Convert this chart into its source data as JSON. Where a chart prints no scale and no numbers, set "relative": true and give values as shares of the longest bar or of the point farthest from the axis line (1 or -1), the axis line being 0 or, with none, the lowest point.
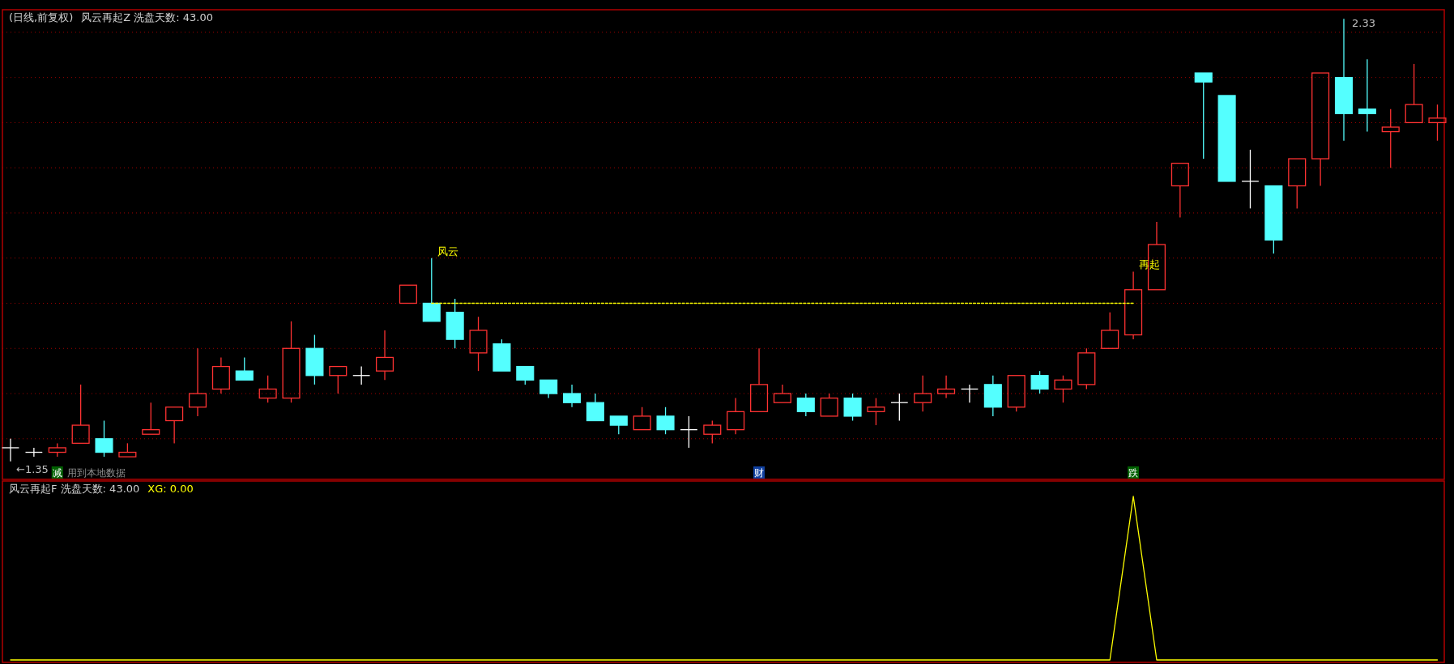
{
  "chart_data": [
    {
      "type": "candlestick",
      "title": "(日线,前复权)",
      "subtitle": "风云再起Z 洗盘天数: 43.00",
      "categories": [
        null,
        null,
        null,
        null,
        null,
        null,
        null,
        null,
        null,
        null,
        null,
        null,
        null,
        null,
        null,
        null,
        null,
        null,
        null,
        null,
        null,
        null,
        null,
        null,
        null,
        null,
        null,
        null,
        null,
        null,
        null,
        null,
        null,
        null,
        null,
        null,
        null,
        null,
        null,
        null,
        null,
        null,
        null,
        null,
        null,
        null,
        null,
        null,
        null,
        null,
        null,
        null,
        null,
        null,
        null,
        null,
        null,
        null,
        null,
        null,
        null,
        null
      ],
      "ylim": [
        1.31,
        2.35
      ],
      "yticks": [
        {
          "value": 1.4,
          "label": null
        },
        {
          "value": 1.5,
          "label": null
        },
        {
          "value": 1.6,
          "label": null
        },
        {
          "value": 1.7,
          "label": null
        },
        {
          "value": 1.8,
          "label": null
        },
        {
          "value": 1.9,
          "label": null
        },
        {
          "value": 2.0,
          "label": null
        },
        {
          "value": 2.1,
          "label": null
        },
        {
          "value": 2.2,
          "label": null
        },
        {
          "value": 2.3,
          "label": null
        }
      ],
      "grid": "y",
      "ohlc": [
        [
          1.38,
          1.4,
          1.35,
          1.38
        ],
        [
          1.37,
          1.38,
          1.36,
          1.37
        ],
        [
          1.37,
          1.39,
          1.36,
          1.38
        ],
        [
          1.39,
          1.52,
          1.39,
          1.43
        ],
        [
          1.4,
          1.44,
          1.36,
          1.37
        ],
        [
          1.36,
          1.39,
          1.36,
          1.37
        ],
        [
          1.41,
          1.48,
          1.41,
          1.42
        ],
        [
          1.44,
          1.47,
          1.39,
          1.47
        ],
        [
          1.47,
          1.6,
          1.45,
          1.5
        ],
        [
          1.51,
          1.58,
          1.5,
          1.56
        ],
        [
          1.55,
          1.58,
          1.53,
          1.53
        ],
        [
          1.49,
          1.54,
          1.48,
          1.51
        ],
        [
          1.49,
          1.66,
          1.48,
          1.6
        ],
        [
          1.6,
          1.63,
          1.52,
          1.54
        ],
        [
          1.54,
          1.56,
          1.5,
          1.56
        ],
        [
          1.54,
          1.56,
          1.52,
          1.54
        ],
        [
          1.55,
          1.64,
          1.53,
          1.58
        ],
        [
          1.7,
          1.74,
          1.7,
          1.74
        ],
        [
          1.7,
          1.8,
          1.66,
          1.66
        ],
        [
          1.68,
          1.71,
          1.6,
          1.62
        ],
        [
          1.59,
          1.67,
          1.55,
          1.64
        ],
        [
          1.61,
          1.62,
          1.55,
          1.55
        ],
        [
          1.56,
          1.56,
          1.52,
          1.53
        ],
        [
          1.53,
          1.53,
          1.49,
          1.5
        ],
        [
          1.5,
          1.52,
          1.47,
          1.48
        ],
        [
          1.48,
          1.5,
          1.44,
          1.44
        ],
        [
          1.45,
          1.45,
          1.41,
          1.43
        ],
        [
          1.42,
          1.47,
          1.42,
          1.45
        ],
        [
          1.45,
          1.47,
          1.41,
          1.42
        ],
        [
          1.42,
          1.45,
          1.38,
          1.42
        ],
        [
          1.41,
          1.44,
          1.39,
          1.43
        ],
        [
          1.42,
          1.49,
          1.41,
          1.46
        ],
        [
          1.46,
          1.6,
          1.46,
          1.52
        ],
        [
          1.48,
          1.52,
          1.48,
          1.5
        ],
        [
          1.49,
          1.5,
          1.45,
          1.46
        ],
        [
          1.45,
          1.5,
          1.45,
          1.49
        ],
        [
          1.49,
          1.5,
          1.44,
          1.45
        ],
        [
          1.46,
          1.49,
          1.43,
          1.47
        ],
        [
          1.48,
          1.5,
          1.44,
          1.48
        ],
        [
          1.48,
          1.54,
          1.46,
          1.5
        ],
        [
          1.5,
          1.54,
          1.49,
          1.51
        ],
        [
          1.51,
          1.52,
          1.48,
          1.51
        ],
        [
          1.52,
          1.54,
          1.45,
          1.47
        ],
        [
          1.47,
          1.54,
          1.46,
          1.54
        ],
        [
          1.54,
          1.55,
          1.5,
          1.51
        ],
        [
          1.51,
          1.54,
          1.48,
          1.53
        ],
        [
          1.52,
          1.6,
          1.51,
          1.59
        ],
        [
          1.6,
          1.68,
          1.6,
          1.64
        ],
        [
          1.63,
          1.77,
          1.62,
          1.73
        ],
        [
          1.73,
          1.88,
          1.73,
          1.83
        ],
        [
          1.96,
          2.01,
          1.89,
          2.01
        ],
        [
          2.21,
          2.21,
          2.02,
          2.19
        ],
        [
          2.16,
          2.16,
          1.97,
          1.97
        ],
        [
          1.97,
          2.04,
          1.91,
          1.97
        ],
        [
          1.96,
          1.96,
          1.81,
          1.84
        ],
        [
          1.96,
          2.02,
          1.91,
          2.02
        ],
        [
          2.02,
          2.21,
          1.96,
          2.21
        ],
        [
          2.2,
          2.33,
          2.06,
          2.12
        ],
        [
          2.13,
          2.24,
          2.08,
          2.12
        ],
        [
          2.08,
          2.13,
          2.0,
          2.09
        ],
        [
          2.1,
          2.23,
          2.1,
          2.14
        ],
        [
          2.1,
          2.14,
          2.06,
          2.11
        ]
      ],
      "colors": [
        "#ffffff",
        "#ffffff",
        "#ff3232",
        "#ff3232",
        "#54ffff",
        "#ff3232",
        "#ff3232",
        "#ff3232",
        "#ff3232",
        "#ff3232",
        "#54ffff",
        "#ff3232",
        "#ff3232",
        "#54ffff",
        "#ff3232",
        "#ffffff",
        "#ff3232",
        "#ff3232",
        "#54ffff",
        "#54ffff",
        "#ff3232",
        "#54ffff",
        "#54ffff",
        "#54ffff",
        "#54ffff",
        "#54ffff",
        "#54ffff",
        "#ff3232",
        "#54ffff",
        "#ffffff",
        "#ff3232",
        "#ff3232",
        "#ff3232",
        "#ff3232",
        "#54ffff",
        "#ff3232",
        "#54ffff",
        "#ff3232",
        "#ffffff",
        "#ff3232",
        "#ff3232",
        "#ffffff",
        "#54ffff",
        "#ff3232",
        "#54ffff",
        "#ff3232",
        "#ff3232",
        "#ff3232",
        "#ff3232",
        "#ff3232",
        "#ff3232",
        "#54ffff",
        "#54ffff",
        "#ffffff",
        "#54ffff",
        "#ff3232",
        "#ff3232",
        "#54ffff",
        "#54ffff",
        "#ff3232",
        "#ff3232",
        "#ff3232"
      ],
      "series": [
        {
          "type": "line",
          "color": "#ffff00",
          "line_style": "dashed",
          "values": [
            null,
            null,
            null,
            null,
            null,
            null,
            null,
            null,
            null,
            null,
            null,
            null,
            null,
            null,
            null,
            null,
            null,
            null,
            1.7,
            1.7,
            1.7,
            1.7,
            1.7,
            1.7,
            1.7,
            1.7,
            1.7,
            1.7,
            1.7,
            1.7,
            1.7,
            1.7,
            1.7,
            1.7,
            1.7,
            1.7,
            1.7,
            1.7,
            1.7,
            1.7,
            1.7,
            1.7,
            1.7,
            1.7,
            1.7,
            1.7,
            1.7,
            1.7,
            1.7,
            null,
            null,
            null,
            null,
            null,
            null,
            null,
            null,
            null,
            null,
            null,
            null,
            null
          ]
        }
      ],
      "annotations": [
        "风云",
        "再起",
        "2.33",
        "←1.35",
        "减",
        "财",
        "跌",
        "用到本地数据"
      ]
    },
    {
      "type": "line",
      "title": "风云再起F 洗盘天数: 43.00",
      "relative": true,
      "categories": [
        null,
        null,
        null,
        null,
        null,
        null,
        null,
        null,
        null,
        null,
        null,
        null,
        null,
        null,
        null,
        null,
        null,
        null,
        null,
        null,
        null,
        null,
        null,
        null,
        null,
        null,
        null,
        null,
        null,
        null,
        null,
        null,
        null,
        null,
        null,
        null,
        null,
        null,
        null,
        null,
        null,
        null,
        null,
        null,
        null,
        null,
        null,
        null,
        null,
        null,
        null,
        null,
        null,
        null,
        null,
        null,
        null,
        null,
        null,
        null,
        null,
        null
      ],
      "series": [
        {
          "name": "XG: 0.00",
          "color": "#ffff00",
          "values": [
            0,
            0,
            0,
            0,
            0,
            0,
            0,
            0,
            0,
            0,
            0,
            0,
            0,
            0,
            0,
            0,
            0,
            0,
            0,
            0,
            0,
            0,
            0,
            0,
            0,
            0,
            0,
            0,
            0,
            0,
            0,
            0,
            0,
            0,
            0,
            0,
            0,
            0,
            0,
            0,
            0,
            0,
            0,
            0,
            0,
            0,
            0,
            0,
            1,
            0,
            0,
            0,
            0,
            0,
            0,
            0,
            0,
            0,
            0,
            0,
            0,
            0
          ]
        }
      ]
    }
  ]
}
